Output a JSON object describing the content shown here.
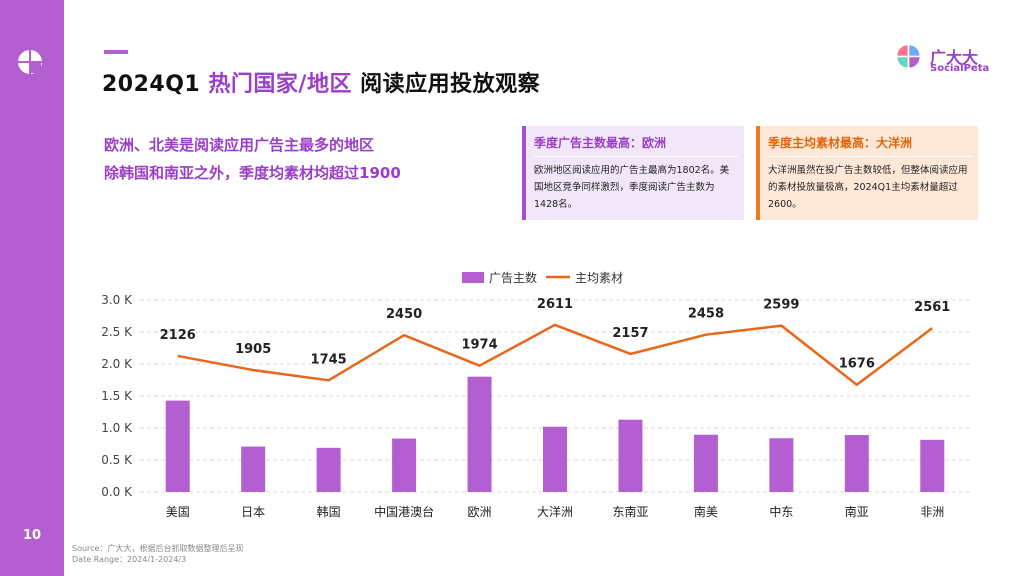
{
  "page": {
    "number": "10",
    "title_part1": "2024Q1 ",
    "title_highlight": "热门国家/地区",
    "title_part2": " 阅读应用投放观察",
    "brand_cn": "广大大",
    "brand_en": "SocialPeta",
    "subtitle_line1": "欧洲、北美是阅读应用广告主最多的地区",
    "subtitle_line2": "除韩国和南亚之外，季度均素材均超过1900",
    "source_line1": "Source：广大大，根据后台抓取数据整理后呈现",
    "source_line2": "Date Range：2024/1-2024/3",
    "colors": {
      "purple": "#b45fd1",
      "orange": "#e8671a"
    }
  },
  "callouts": [
    {
      "title": "季度广告主数最高：欧洲",
      "text": "欧洲地区阅读应用的广告主最高为1802名。美国地区竞争同样激烈，季度阅读广告主数为1428名。"
    },
    {
      "title": "季度主均素材最高：大洋洲",
      "text": "大洋洲虽然在投广告主数较低，但整体阅读应用的素材投放量极高，2024Q1主均素材量超过2600。"
    }
  ],
  "chart_data": {
    "type": "bar",
    "categories": [
      "美国",
      "日本",
      "韩国",
      "中国港澳台",
      "欧洲",
      "大洋洲",
      "东南亚",
      "南美",
      "中东",
      "南亚",
      "非洲"
    ],
    "series": [
      {
        "name": "广告主数",
        "type": "bar",
        "color": "#b45fd1",
        "values": [
          1428,
          710,
          690,
          835,
          1802,
          1020,
          1130,
          895,
          840,
          890,
          815
        ]
      },
      {
        "name": "主均素材",
        "type": "line",
        "color": "#e8671a",
        "values": [
          2126,
          1905,
          1745,
          2450,
          1974,
          2611,
          2157,
          2458,
          2599,
          1676,
          2561
        ]
      }
    ],
    "line_labels": [
      "2126",
      "1905",
      "1745",
      "2450",
      "1974",
      "2611",
      "2157",
      "2458",
      "2599",
      "1676",
      "2561"
    ],
    "y_ticks": [
      "0.0 K",
      "0.5 K",
      "1.0 K",
      "1.5 K",
      "2.0 K",
      "2.5 K",
      "3.0 K"
    ],
    "ylim": [
      0,
      3000
    ],
    "legend": [
      "广告主数",
      "主均素材"
    ],
    "legend_position": "top",
    "grid": true
  }
}
